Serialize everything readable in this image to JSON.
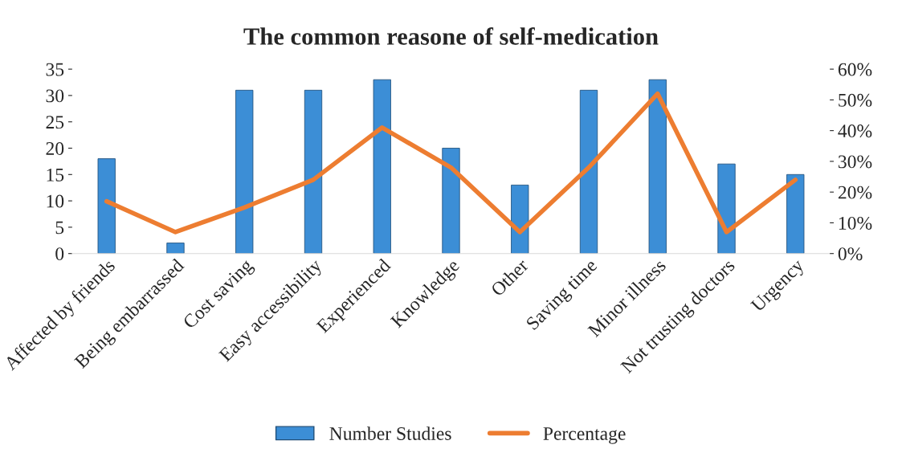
{
  "chart_data": {
    "type": "bar",
    "title": "The common reasone of self-medication",
    "categories": [
      "Affected by friends",
      "Being embarrassed",
      "Cost saving",
      "Easy accessibility",
      "Experienced",
      "Knowledge",
      "Other",
      "Saving time",
      "Minor illness",
      "Not trusting doctors",
      "Urgency"
    ],
    "series": [
      {
        "name": "Number Studies",
        "color": "#3c8ed6",
        "values": [
          18,
          2,
          31,
          31,
          33,
          20,
          13,
          31,
          33,
          17,
          15
        ]
      },
      {
        "name": "Percentage",
        "type": "line",
        "axis": "y2",
        "color": "#ed7d31",
        "values": [
          17,
          7,
          15,
          24,
          41,
          28,
          7,
          28,
          52,
          7,
          24
        ]
      }
    ],
    "ylim": [
      0,
      35
    ],
    "yticks": [
      0,
      5,
      10,
      15,
      20,
      25,
      30,
      35
    ],
    "y2lim": [
      0,
      60
    ],
    "y2ticks": [
      {
        "value": 0,
        "label": "0%"
      },
      {
        "value": 10,
        "label": "10%"
      },
      {
        "value": 20,
        "label": "20%"
      },
      {
        "value": 30,
        "label": "30%"
      },
      {
        "value": 40,
        "label": "40%"
      },
      {
        "value": 50,
        "label": "50%"
      },
      {
        "value": 60,
        "label": "60%"
      }
    ],
    "grid": false,
    "legend": "bottom",
    "marker": "none",
    "line_style": "solid"
  }
}
